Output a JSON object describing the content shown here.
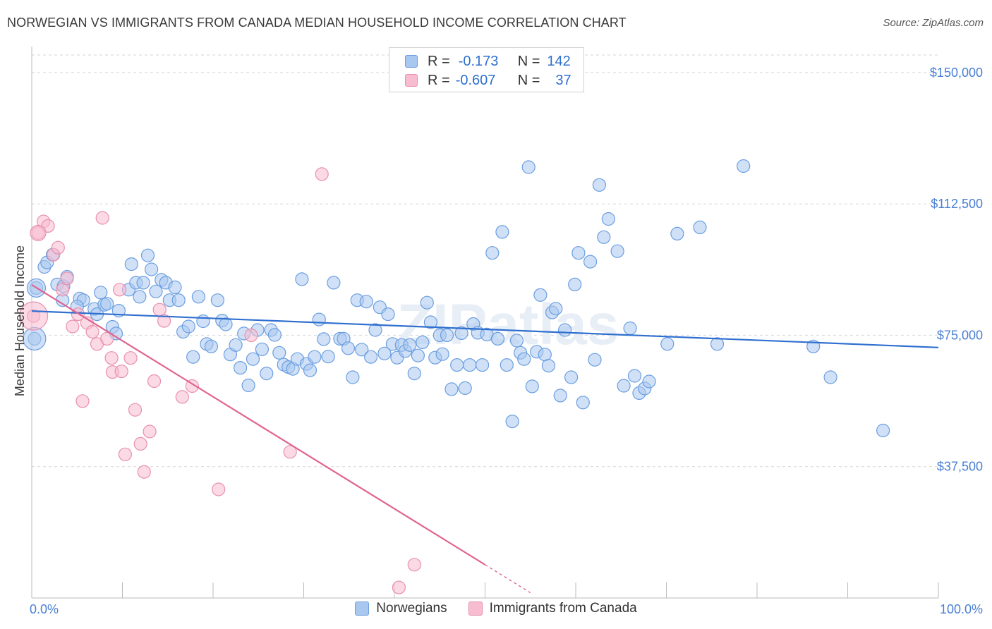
{
  "title": "NORWEGIAN VS IMMIGRANTS FROM CANADA MEDIAN HOUSEHOLD INCOME CORRELATION CHART",
  "source": "Source: ZipAtlas.com",
  "watermark": "ZIPatlas",
  "legend": {
    "r_label": "R =",
    "n_label": "N =",
    "series1": {
      "r": "-0.173",
      "n": "142"
    },
    "series2": {
      "r": "-0.607",
      "n": "37"
    }
  },
  "bottom_legend": {
    "series1": "Norwegians",
    "series2": "Immigrants from Canada"
  },
  "colors": {
    "blue_fill": "#a9c8f0",
    "blue_stroke": "#6b9ee0",
    "blue_line": "#2f6fd0",
    "pink_fill": "#f7bcd0",
    "pink_stroke": "#e890ad",
    "pink_line": "#e0648f",
    "tick_color": "#4a7fd4"
  },
  "chart_data": {
    "type": "scatter",
    "ylabel": "Median Household Income",
    "xlabel": "",
    "x_tick_labels": [
      "0.0%",
      "100.0%"
    ],
    "y_tick_labels": [
      "$150,000",
      "$112,500",
      "$75,000",
      "$37,500"
    ],
    "y_ticks": [
      150000,
      112500,
      75000,
      37500
    ],
    "xlim": [
      0,
      100
    ],
    "ylim": [
      0,
      155000
    ],
    "grid": true,
    "legend_position": "top-center",
    "series": [
      {
        "name": "Norwegians",
        "r": -0.173,
        "n": 142,
        "trend": {
          "x": [
            0,
            100
          ],
          "y": [
            81900,
            71500
          ]
        },
        "points": [
          [
            0.3,
            74000
          ],
          [
            0.5,
            88500
          ],
          [
            1.4,
            94500
          ],
          [
            1.7,
            95800
          ],
          [
            2.3,
            98000
          ],
          [
            2.8,
            89500
          ],
          [
            3.5,
            89000
          ],
          [
            3.9,
            91700
          ],
          [
            3.4,
            85000
          ],
          [
            5.3,
            85500
          ],
          [
            5.7,
            85000
          ],
          [
            5.0,
            83200
          ],
          [
            6.9,
            82500
          ],
          [
            7.2,
            81000
          ],
          [
            7.6,
            87200
          ],
          [
            8.0,
            83700
          ],
          [
            8.3,
            84000
          ],
          [
            9.6,
            82000
          ],
          [
            8.9,
            77400
          ],
          [
            9.3,
            75500
          ],
          [
            10.7,
            88000
          ],
          [
            11.0,
            95300
          ],
          [
            11.5,
            90000
          ],
          [
            11.9,
            86000
          ],
          [
            12.3,
            90000
          ],
          [
            12.8,
            97800
          ],
          [
            13.2,
            93800
          ],
          [
            13.7,
            87500
          ],
          [
            14.3,
            90800
          ],
          [
            14.8,
            90000
          ],
          [
            15.2,
            85000
          ],
          [
            15.8,
            88700
          ],
          [
            16.2,
            85000
          ],
          [
            16.7,
            76000
          ],
          [
            17.3,
            77500
          ],
          [
            17.8,
            68800
          ],
          [
            18.4,
            86000
          ],
          [
            18.9,
            79000
          ],
          [
            19.3,
            72500
          ],
          [
            19.8,
            71800
          ],
          [
            20.5,
            85000
          ],
          [
            21.0,
            79200
          ],
          [
            21.4,
            78100
          ],
          [
            21.9,
            69500
          ],
          [
            22.5,
            72200
          ],
          [
            23.0,
            65700
          ],
          [
            23.4,
            75500
          ],
          [
            23.9,
            60700
          ],
          [
            24.4,
            68200
          ],
          [
            24.9,
            76500
          ],
          [
            25.4,
            71000
          ],
          [
            25.9,
            64100
          ],
          [
            26.4,
            76500
          ],
          [
            26.8,
            75100
          ],
          [
            27.3,
            70000
          ],
          [
            27.8,
            66600
          ],
          [
            28.3,
            65900
          ],
          [
            28.8,
            65400
          ],
          [
            29.3,
            68200
          ],
          [
            29.8,
            91000
          ],
          [
            30.3,
            66800
          ],
          [
            30.7,
            65000
          ],
          [
            31.2,
            68800
          ],
          [
            31.7,
            79500
          ],
          [
            32.2,
            73900
          ],
          [
            32.7,
            68900
          ],
          [
            33.3,
            90000
          ],
          [
            34.0,
            74000
          ],
          [
            34.4,
            74000
          ],
          [
            34.9,
            71300
          ],
          [
            35.4,
            63000
          ],
          [
            35.9,
            85000
          ],
          [
            36.4,
            70900
          ],
          [
            36.9,
            84600
          ],
          [
            37.4,
            68800
          ],
          [
            37.9,
            76500
          ],
          [
            38.4,
            83000
          ],
          [
            38.9,
            69800
          ],
          [
            39.3,
            81000
          ],
          [
            39.8,
            72500
          ],
          [
            40.3,
            68600
          ],
          [
            40.8,
            72200
          ],
          [
            41.2,
            70500
          ],
          [
            41.7,
            72200
          ],
          [
            42.2,
            64100
          ],
          [
            42.6,
            69200
          ],
          [
            43.1,
            73000
          ],
          [
            43.6,
            84300
          ],
          [
            44.0,
            78700
          ],
          [
            44.5,
            68600
          ],
          [
            45.0,
            75000
          ],
          [
            45.3,
            69600
          ],
          [
            45.8,
            75000
          ],
          [
            46.3,
            59600
          ],
          [
            46.9,
            66500
          ],
          [
            47.4,
            75600
          ],
          [
            47.8,
            59900
          ],
          [
            48.3,
            66500
          ],
          [
            48.7,
            78200
          ],
          [
            49.2,
            75700
          ],
          [
            49.7,
            66500
          ],
          [
            50.2,
            75200
          ],
          [
            50.8,
            98500
          ],
          [
            51.4,
            74000
          ],
          [
            51.9,
            104500
          ],
          [
            52.4,
            66500
          ],
          [
            53.0,
            50400
          ],
          [
            53.5,
            73500
          ],
          [
            53.9,
            70000
          ],
          [
            54.3,
            68200
          ],
          [
            54.8,
            123000
          ],
          [
            55.2,
            60400
          ],
          [
            55.7,
            70300
          ],
          [
            56.1,
            86500
          ],
          [
            56.6,
            69500
          ],
          [
            57.0,
            66300
          ],
          [
            57.4,
            81500
          ],
          [
            57.8,
            82600
          ],
          [
            58.3,
            57800
          ],
          [
            58.8,
            76500
          ],
          [
            59.5,
            63000
          ],
          [
            59.9,
            89500
          ],
          [
            60.3,
            98500
          ],
          [
            60.8,
            55800
          ],
          [
            61.6,
            96000
          ],
          [
            62.1,
            68000
          ],
          [
            62.6,
            117900
          ],
          [
            63.1,
            103000
          ],
          [
            63.6,
            108200
          ],
          [
            64.6,
            99000
          ],
          [
            65.3,
            60600
          ],
          [
            66.0,
            77000
          ],
          [
            66.5,
            63400
          ],
          [
            67.0,
            58500
          ],
          [
            67.6,
            59800
          ],
          [
            68.1,
            61800
          ],
          [
            70.1,
            72500
          ],
          [
            71.2,
            104000
          ],
          [
            73.7,
            105800
          ],
          [
            75.6,
            72500
          ],
          [
            78.5,
            123300
          ],
          [
            86.2,
            71800
          ],
          [
            88.1,
            63000
          ],
          [
            93.9,
            47800
          ]
        ]
      },
      {
        "name": "Immigrants from Canada",
        "r": -0.607,
        "n": 37,
        "trend": {
          "x": [
            0,
            50
          ],
          "y": [
            89400,
            9500
          ]
        },
        "trend_dashed": {
          "x": [
            50,
            55
          ],
          "y": [
            9500,
            1500
          ]
        },
        "points": [
          [
            0.2,
            80500
          ],
          [
            0.7,
            104200
          ],
          [
            1.3,
            107500
          ],
          [
            1.8,
            106200
          ],
          [
            2.4,
            98000
          ],
          [
            2.9,
            100000
          ],
          [
            3.4,
            88000
          ],
          [
            3.9,
            91200
          ],
          [
            4.5,
            77500
          ],
          [
            5.1,
            81000
          ],
          [
            5.6,
            56200
          ],
          [
            6.1,
            78500
          ],
          [
            6.7,
            76000
          ],
          [
            7.2,
            72500
          ],
          [
            7.8,
            108500
          ],
          [
            8.3,
            74000
          ],
          [
            8.8,
            68500
          ],
          [
            8.9,
            64500
          ],
          [
            9.7,
            88000
          ],
          [
            9.9,
            64700
          ],
          [
            10.3,
            41000
          ],
          [
            10.9,
            68500
          ],
          [
            11.4,
            53700
          ],
          [
            12.0,
            44000
          ],
          [
            12.4,
            36000
          ],
          [
            13.0,
            47500
          ],
          [
            13.5,
            61900
          ],
          [
            14.1,
            82300
          ],
          [
            14.6,
            79100
          ],
          [
            16.6,
            57400
          ],
          [
            17.7,
            60500
          ],
          [
            20.6,
            31000
          ],
          [
            24.2,
            75000
          ],
          [
            28.5,
            41700
          ],
          [
            32.0,
            121000
          ],
          [
            40.5,
            3000
          ],
          [
            42.2,
            9500
          ]
        ]
      }
    ]
  }
}
